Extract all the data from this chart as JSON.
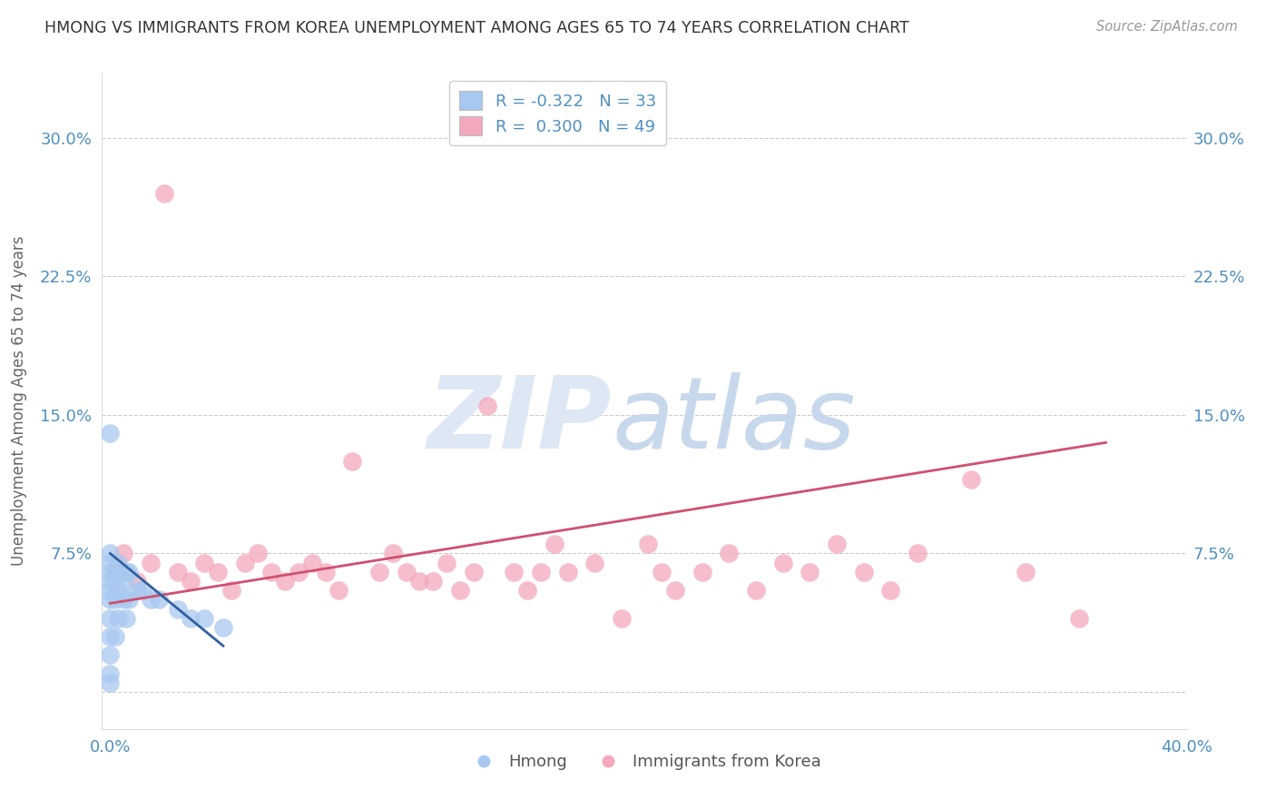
{
  "title": "HMONG VS IMMIGRANTS FROM KOREA UNEMPLOYMENT AMONG AGES 65 TO 74 YEARS CORRELATION CHART",
  "source": "Source: ZipAtlas.com",
  "ylabel": "Unemployment Among Ages 65 to 74 years",
  "xlim": [
    -0.003,
    0.4
  ],
  "ylim": [
    -0.02,
    0.335
  ],
  "ytick_positions": [
    0.0,
    0.075,
    0.15,
    0.225,
    0.3
  ],
  "ytick_labels": [
    "",
    "7.5%",
    "15.0%",
    "22.5%",
    "30.0%"
  ],
  "xtick_positions": [
    0.0,
    0.1,
    0.2,
    0.3,
    0.4
  ],
  "xtick_labels": [
    "0.0%",
    "",
    "",
    "",
    "40.0%"
  ],
  "grid_color": "#cccccc",
  "background_color": "#ffffff",
  "label1": "Hmong",
  "label2": "Immigrants from Korea",
  "color1": "#a8c8f0",
  "color2": "#f4a8bc",
  "line_color1": "#3060a0",
  "line_color2": "#d05070",
  "tick_color": "#5090c0",
  "hmong_x": [
    0.0,
    0.0,
    0.0,
    0.0,
    0.0,
    0.0,
    0.0,
    0.0,
    0.0,
    0.0,
    0.0,
    0.0,
    0.002,
    0.002,
    0.002,
    0.003,
    0.003,
    0.003,
    0.003,
    0.005,
    0.005,
    0.006,
    0.006,
    0.007,
    0.007,
    0.01,
    0.012,
    0.015,
    0.018,
    0.025,
    0.03,
    0.035,
    0.042
  ],
  "hmong_y": [
    0.005,
    0.01,
    0.02,
    0.03,
    0.04,
    0.05,
    0.055,
    0.06,
    0.065,
    0.07,
    0.075,
    0.14,
    0.03,
    0.05,
    0.065,
    0.04,
    0.055,
    0.065,
    0.07,
    0.05,
    0.06,
    0.04,
    0.065,
    0.05,
    0.065,
    0.055,
    0.055,
    0.05,
    0.05,
    0.045,
    0.04,
    0.04,
    0.035
  ],
  "hmong_line_x": [
    0.0,
    0.042
  ],
  "hmong_line_y": [
    0.075,
    0.025
  ],
  "korea_x": [
    0.005,
    0.01,
    0.015,
    0.02,
    0.025,
    0.03,
    0.035,
    0.04,
    0.045,
    0.05,
    0.055,
    0.06,
    0.065,
    0.07,
    0.075,
    0.08,
    0.085,
    0.09,
    0.1,
    0.105,
    0.11,
    0.115,
    0.12,
    0.125,
    0.13,
    0.135,
    0.14,
    0.15,
    0.155,
    0.16,
    0.165,
    0.17,
    0.18,
    0.19,
    0.2,
    0.205,
    0.21,
    0.22,
    0.23,
    0.24,
    0.25,
    0.26,
    0.27,
    0.28,
    0.29,
    0.3,
    0.32,
    0.34,
    0.36
  ],
  "korea_y": [
    0.075,
    0.06,
    0.07,
    0.27,
    0.065,
    0.06,
    0.07,
    0.065,
    0.055,
    0.07,
    0.075,
    0.065,
    0.06,
    0.065,
    0.07,
    0.065,
    0.055,
    0.125,
    0.065,
    0.075,
    0.065,
    0.06,
    0.06,
    0.07,
    0.055,
    0.065,
    0.155,
    0.065,
    0.055,
    0.065,
    0.08,
    0.065,
    0.07,
    0.04,
    0.08,
    0.065,
    0.055,
    0.065,
    0.075,
    0.055,
    0.07,
    0.065,
    0.08,
    0.065,
    0.055,
    0.075,
    0.115,
    0.065,
    0.04
  ],
  "korea_line_x": [
    0.0,
    0.37
  ],
  "korea_line_y": [
    0.048,
    0.135
  ]
}
